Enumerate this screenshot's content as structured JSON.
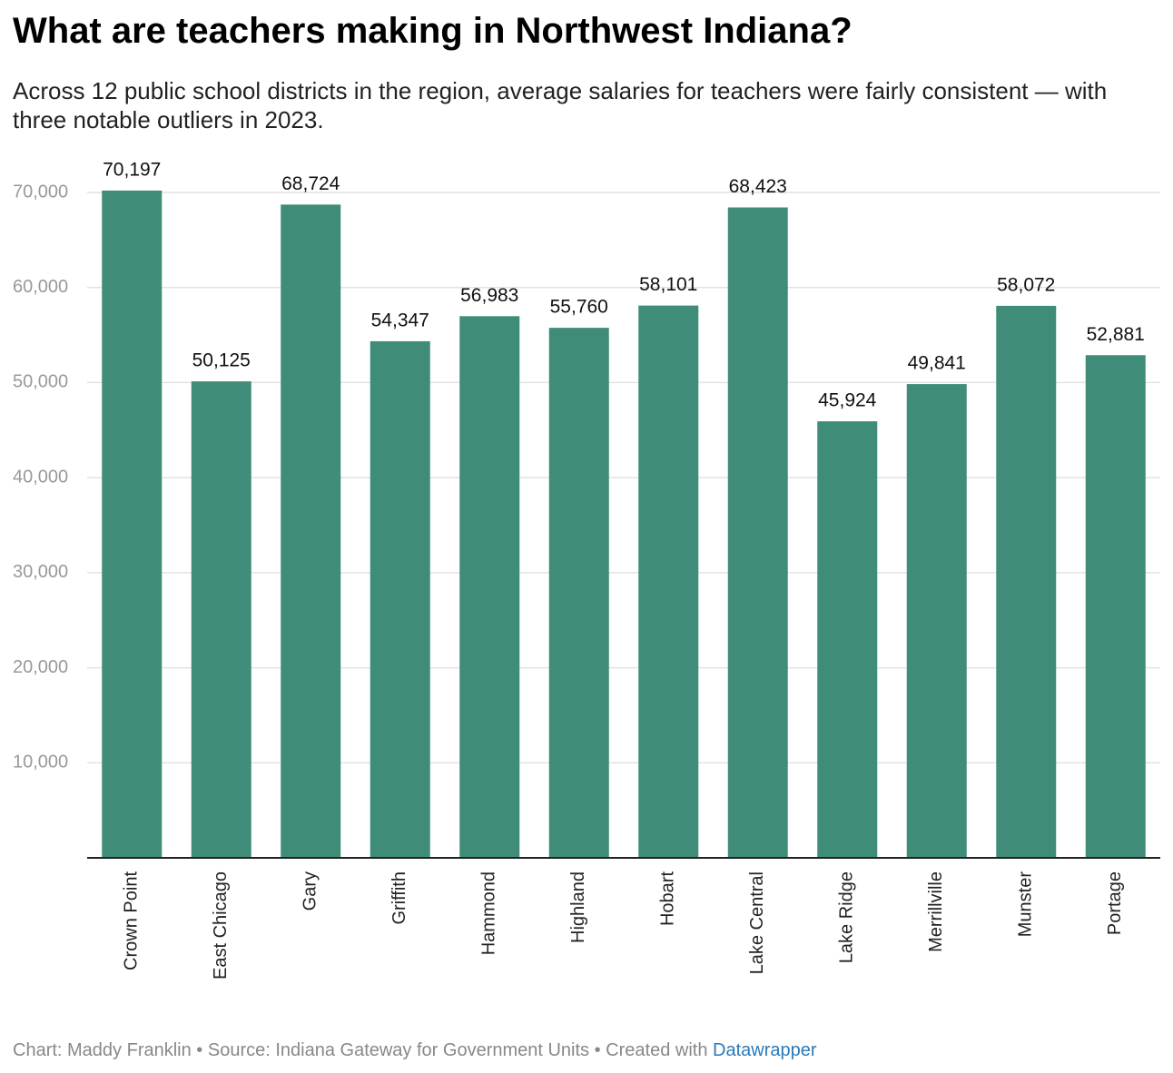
{
  "chart_data": {
    "type": "bar",
    "title": "What are teachers making in Northwest Indiana?",
    "subtitle": "Across 12 public school districts in the region, average salaries for teachers were fairly consistent — with three notable outliers in 2023.",
    "categories": [
      "Crown Point",
      "East Chicago",
      "Gary",
      "Griffith",
      "Hammond",
      "Highland",
      "Hobart",
      "Lake Central",
      "Lake Ridge",
      "Merrillville",
      "Munster",
      "Portage"
    ],
    "values": [
      70197,
      50125,
      68724,
      54347,
      56983,
      55760,
      58101,
      68423,
      45924,
      49841,
      58072,
      52881
    ],
    "value_labels": [
      "70,197",
      "50,125",
      "68,724",
      "54,347",
      "56,983",
      "55,760",
      "58,101",
      "68,423",
      "45,924",
      "49,841",
      "58,072",
      "52,881"
    ],
    "color": "#3f8c78",
    "ylim": [
      0,
      70000
    ],
    "yticks": [
      {
        "value": 10000,
        "label": "10,000"
      },
      {
        "value": 20000,
        "label": "20,000"
      },
      {
        "value": 30000,
        "label": "30,000"
      },
      {
        "value": 40000,
        "label": "40,000"
      },
      {
        "value": 50000,
        "label": "50,000"
      },
      {
        "value": 60000,
        "label": "60,000"
      },
      {
        "value": 70000,
        "label": "70,000"
      }
    ],
    "grid": true
  },
  "footer": {
    "credit": "Chart: Maddy Franklin • Source: Indiana Gateway for Government Units • Created with",
    "tool": "Datawrapper"
  }
}
